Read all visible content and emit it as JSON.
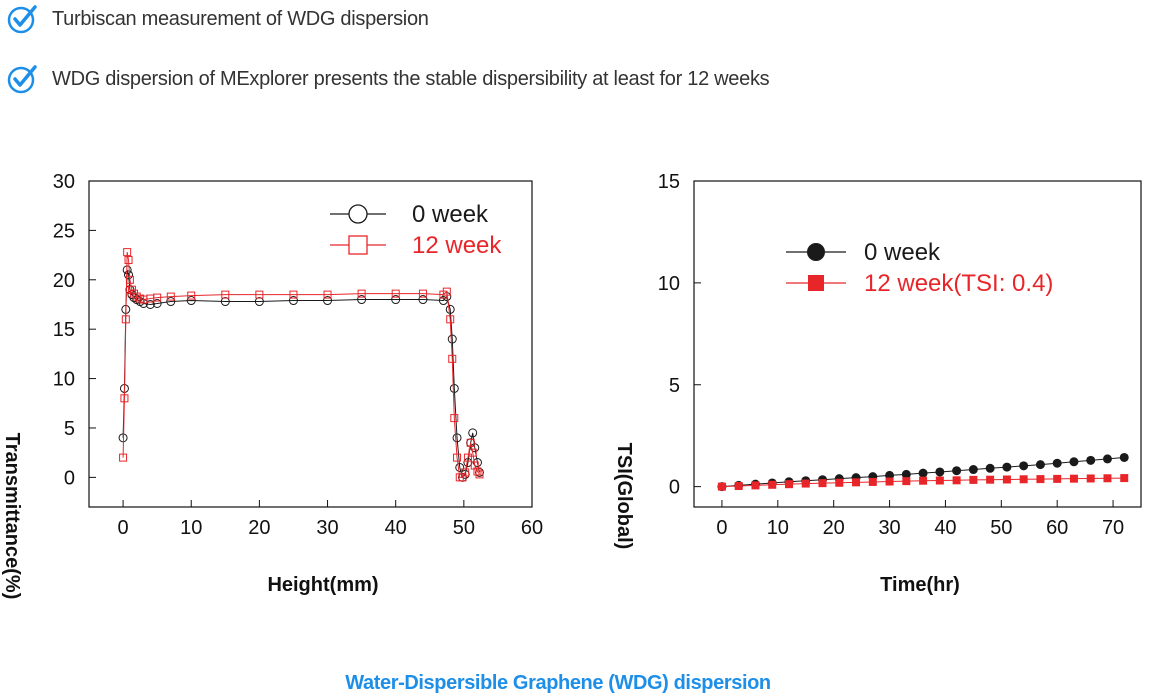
{
  "bullets": [
    {
      "text": "Turbiscan measurement of WDG dispersion",
      "icon": "checkmark-circle-icon"
    },
    {
      "text": "WDG dispersion of MExplorer presents the stable dispersibility at least for 12 weeks",
      "icon": "checkmark-circle-icon"
    }
  ],
  "caption": "Water-Dispersible Graphene (WDG) dispersion",
  "colors": {
    "accent": "#1d8fe8",
    "series_black": "#1a1a1a",
    "series_red": "#e8262a"
  },
  "chart_data": [
    {
      "type": "scatter",
      "title": "",
      "xlabel": "Height(mm)",
      "ylabel": "Transmittance(%)",
      "xlim": [
        -5,
        60
      ],
      "ylim": [
        -3,
        30
      ],
      "xticks": [
        "0",
        "10",
        "20",
        "30",
        "40",
        "50",
        "60"
      ],
      "yticks": [
        "0",
        "5",
        "10",
        "15",
        "20",
        "25",
        "30"
      ],
      "legend_position": "top-right",
      "series": [
        {
          "name": "0 week",
          "marker": "open-circle",
          "color": "#1a1a1a",
          "x": [
            0.0,
            0.2,
            0.4,
            0.6,
            0.8,
            1.0,
            1.3,
            1.6,
            2.0,
            2.5,
            3.0,
            4.0,
            5.0,
            7.0,
            10.0,
            15.0,
            20.0,
            25.0,
            30.0,
            35.0,
            40.0,
            44.0,
            47.0,
            47.5,
            48.0,
            48.3,
            48.6,
            49.0,
            49.4,
            49.8,
            50.2,
            50.6,
            51.0,
            51.3,
            51.6,
            52.0,
            52.3
          ],
          "y": [
            4.0,
            9.0,
            17.0,
            21.0,
            20.5,
            19.0,
            18.5,
            18.2,
            18.0,
            17.8,
            17.6,
            17.5,
            17.6,
            17.8,
            17.9,
            17.8,
            17.8,
            17.9,
            17.9,
            18.0,
            18.0,
            18.0,
            17.9,
            18.3,
            17.0,
            14.0,
            9.0,
            4.0,
            1.0,
            0.0,
            0.3,
            1.5,
            3.5,
            4.5,
            3.0,
            1.5,
            0.5
          ]
        },
        {
          "name": "12 week",
          "marker": "open-square",
          "color": "#e8262a",
          "x": [
            0.0,
            0.2,
            0.4,
            0.6,
            0.8,
            1.0,
            1.3,
            1.6,
            2.0,
            2.5,
            3.0,
            4.0,
            5.0,
            7.0,
            10.0,
            15.0,
            20.0,
            25.0,
            30.0,
            35.0,
            40.0,
            44.0,
            47.0,
            47.5,
            48.0,
            48.3,
            48.6,
            49.0,
            49.4,
            49.8,
            50.2,
            50.6,
            51.0,
            51.3,
            51.6,
            52.0,
            52.3
          ],
          "y": [
            2.0,
            8.0,
            16.0,
            22.8,
            22.0,
            20.0,
            19.0,
            18.6,
            18.3,
            18.1,
            18.0,
            18.1,
            18.2,
            18.3,
            18.4,
            18.5,
            18.5,
            18.5,
            18.5,
            18.6,
            18.6,
            18.6,
            18.5,
            18.8,
            16.0,
            12.0,
            6.0,
            2.0,
            0.0,
            0.0,
            0.5,
            2.0,
            3.5,
            2.5,
            1.2,
            0.6,
            0.3
          ]
        }
      ]
    },
    {
      "type": "line",
      "title": "",
      "xlabel": "Time(hr)",
      "ylabel": "TSI(Global)",
      "xlim": [
        -5,
        75
      ],
      "ylim": [
        -1,
        15
      ],
      "xticks": [
        "0",
        "10",
        "20",
        "30",
        "40",
        "50",
        "60",
        "70"
      ],
      "yticks": [
        "0",
        "5",
        "10",
        "15"
      ],
      "legend_position": "upper-left",
      "series": [
        {
          "name": "0 week",
          "marker": "filled-circle",
          "color": "#1a1a1a",
          "x": [
            0,
            3,
            6,
            9,
            12,
            15,
            18,
            21,
            24,
            27,
            30,
            33,
            36,
            39,
            42,
            45,
            48,
            51,
            54,
            57,
            60,
            63,
            66,
            69,
            72
          ],
          "y": [
            0.0,
            0.06,
            0.12,
            0.18,
            0.24,
            0.29,
            0.34,
            0.39,
            0.44,
            0.49,
            0.55,
            0.6,
            0.66,
            0.72,
            0.78,
            0.84,
            0.9,
            0.96,
            1.02,
            1.08,
            1.15,
            1.22,
            1.29,
            1.36,
            1.43
          ]
        },
        {
          "name": "12 week(TSI: 0.4)",
          "marker": "filled-square",
          "color": "#e8262a",
          "x": [
            0,
            3,
            6,
            9,
            12,
            15,
            18,
            21,
            24,
            27,
            30,
            33,
            36,
            39,
            42,
            45,
            48,
            51,
            54,
            57,
            60,
            63,
            66,
            69,
            72
          ],
          "y": [
            0.0,
            0.03,
            0.06,
            0.09,
            0.12,
            0.15,
            0.17,
            0.19,
            0.21,
            0.23,
            0.25,
            0.27,
            0.29,
            0.3,
            0.31,
            0.33,
            0.34,
            0.35,
            0.36,
            0.37,
            0.38,
            0.39,
            0.4,
            0.41,
            0.42
          ]
        }
      ]
    }
  ]
}
